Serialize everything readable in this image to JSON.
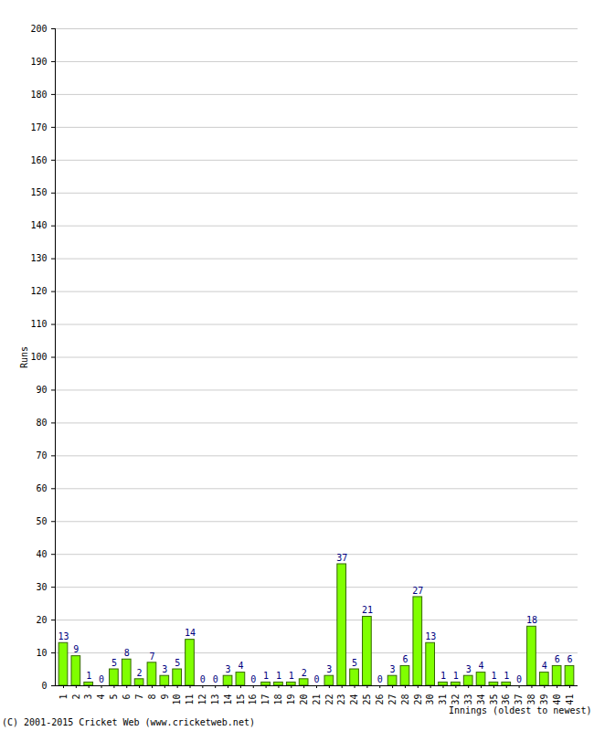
{
  "chart_data": {
    "type": "bar",
    "caption": "(C) 2001-2015 Cricket Web (www.cricketweb.net)",
    "x_label": "Innings (oldest to newest)",
    "y_label": "Runs",
    "categories": [
      "1",
      "2",
      "3",
      "4",
      "5",
      "6",
      "7",
      "8",
      "9",
      "10",
      "11",
      "12",
      "13",
      "14",
      "15",
      "16",
      "17",
      "18",
      "19",
      "20",
      "21",
      "22",
      "23",
      "24",
      "25",
      "26",
      "27",
      "28",
      "29",
      "30",
      "31",
      "32",
      "33",
      "34",
      "35",
      "36",
      "37",
      "38",
      "39",
      "40",
      "41"
    ],
    "values": [
      13,
      9,
      1,
      0,
      5,
      8,
      2,
      7,
      3,
      5,
      14,
      0,
      0,
      3,
      4,
      0,
      1,
      1,
      1,
      2,
      0,
      3,
      37,
      5,
      21,
      0,
      3,
      6,
      27,
      13,
      1,
      1,
      3,
      4,
      1,
      1,
      0,
      18,
      4,
      6,
      6
    ],
    "color": "#80ff00",
    "ylim": [
      0,
      200
    ],
    "yticks": [
      0,
      10,
      20,
      30,
      40,
      50,
      60,
      70,
      80,
      90,
      100,
      110,
      120,
      130,
      140,
      150,
      160,
      170,
      180,
      190,
      200
    ],
    "grid": true,
    "data_labels": true
  }
}
